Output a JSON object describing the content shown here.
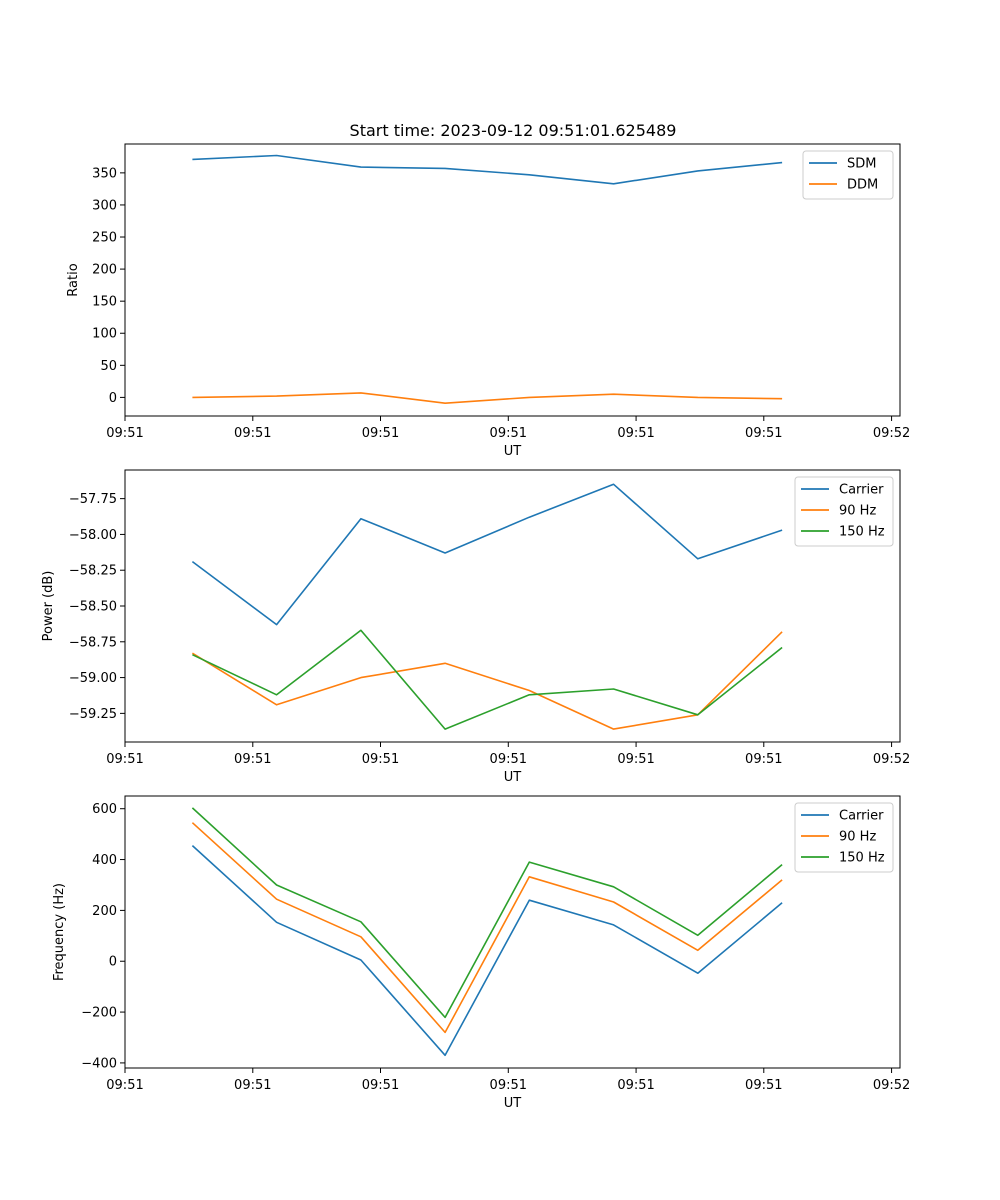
{
  "figure_title": "Start time: 2023-09-12 09:51:01.625489",
  "colors": {
    "c0": "#1f77b4",
    "c1": "#ff7f0e",
    "c2": "#2ca02c"
  },
  "chart_data": [
    {
      "type": "line",
      "title": "Start time: 2023-09-12 09:51:01.625489",
      "xlabel": "UT",
      "ylabel": "Ratio",
      "x": [
        1,
        2,
        3,
        4,
        5,
        6,
        7,
        8
      ],
      "xlim": [
        0.2,
        9.4
      ],
      "xticks": [
        0.2,
        1.717,
        3.233,
        4.75,
        6.267,
        7.783,
        9.3
      ],
      "xticklabels": [
        "09:51",
        "09:51",
        "09:51",
        "09:51",
        "09:51",
        "09:51",
        "09:52"
      ],
      "ylim": [
        -29,
        395
      ],
      "yticks": [
        0,
        50,
        100,
        150,
        200,
        250,
        300,
        350
      ],
      "yticklabels": [
        "0",
        "50",
        "100",
        "150",
        "200",
        "250",
        "300",
        "350"
      ],
      "legend_position": "top-right",
      "series": [
        {
          "name": "SDM",
          "color": "#1f77b4",
          "values": [
            371,
            377,
            359,
            357,
            347,
            333,
            353,
            366
          ]
        },
        {
          "name": "DDM",
          "color": "#ff7f0e",
          "values": [
            0,
            2,
            7,
            -9,
            0,
            5,
            0,
            -2
          ]
        }
      ]
    },
    {
      "type": "line",
      "title": "",
      "xlabel": "UT",
      "ylabel": "Power (dB)",
      "x": [
        1,
        2,
        3,
        4,
        5,
        6,
        7,
        8
      ],
      "xlim": [
        0.2,
        9.4
      ],
      "xticks": [
        0.2,
        1.717,
        3.233,
        4.75,
        6.267,
        7.783,
        9.3
      ],
      "xticklabels": [
        "09:51",
        "09:51",
        "09:51",
        "09:51",
        "09:51",
        "09:51",
        "09:52"
      ],
      "ylim": [
        -59.45,
        -57.55
      ],
      "yticks": [
        -59.25,
        -59.0,
        -58.75,
        -58.5,
        -58.25,
        -58.0,
        -57.75
      ],
      "yticklabels": [
        "−59.25",
        "−59.00",
        "−58.75",
        "−58.50",
        "−58.25",
        "−58.00",
        "−57.75"
      ],
      "legend_position": "top-right",
      "series": [
        {
          "name": "Carrier",
          "color": "#1f77b4",
          "values": [
            -58.19,
            -58.63,
            -57.89,
            -58.13,
            -57.88,
            -57.65,
            -58.17,
            -57.97
          ]
        },
        {
          "name": "90 Hz",
          "color": "#ff7f0e",
          "values": [
            -58.83,
            -59.19,
            -59.0,
            -58.9,
            -59.09,
            -59.36,
            -59.26,
            -58.68
          ]
        },
        {
          "name": "150 Hz",
          "color": "#2ca02c",
          "values": [
            -58.84,
            -59.12,
            -58.67,
            -59.36,
            -59.12,
            -59.08,
            -59.26,
            -58.79
          ]
        }
      ]
    },
    {
      "type": "line",
      "title": "",
      "xlabel": "UT",
      "ylabel": "Frequency (Hz)",
      "x": [
        1,
        2,
        3,
        4,
        5,
        6,
        7,
        8
      ],
      "xlim": [
        0.2,
        9.4
      ],
      "xticks": [
        0.2,
        1.717,
        3.233,
        4.75,
        6.267,
        7.783,
        9.3
      ],
      "xticklabels": [
        "09:51",
        "09:51",
        "09:51",
        "09:51",
        "09:51",
        "09:51",
        "09:52"
      ],
      "ylim": [
        -420,
        650
      ],
      "yticks": [
        -400,
        -200,
        0,
        200,
        400,
        600
      ],
      "yticklabels": [
        "−400",
        "−200",
        "0",
        "200",
        "400",
        "600"
      ],
      "legend_position": "top-right",
      "series": [
        {
          "name": "Carrier",
          "color": "#1f77b4",
          "values": [
            455,
            153,
            5,
            -370,
            240,
            143,
            -47,
            230
          ]
        },
        {
          "name": "90 Hz",
          "color": "#ff7f0e",
          "values": [
            545,
            244,
            96,
            -280,
            332,
            233,
            43,
            320
          ]
        },
        {
          "name": "150 Hz",
          "color": "#2ca02c",
          "values": [
            603,
            300,
            155,
            -221,
            390,
            293,
            102,
            380
          ]
        }
      ]
    }
  ]
}
